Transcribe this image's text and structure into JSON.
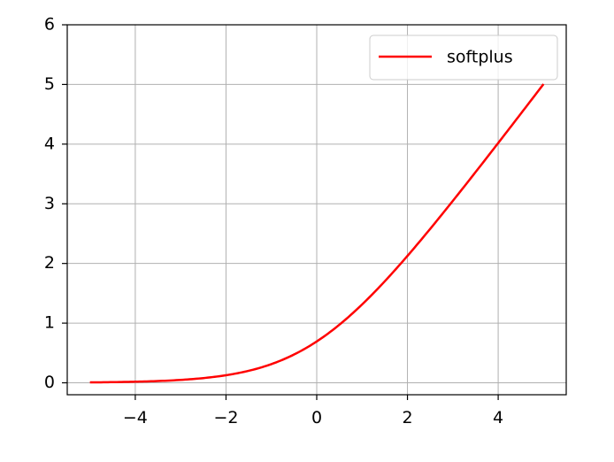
{
  "chart_data": {
    "type": "line",
    "title": "",
    "xlabel": "",
    "ylabel": "",
    "xlim": [
      -5.5,
      5.5
    ],
    "ylim": [
      -0.2,
      6.0
    ],
    "xticks": [
      -4,
      -2,
      0,
      2,
      4
    ],
    "xtick_labels": [
      "−4",
      "−2",
      "0",
      "2",
      "4"
    ],
    "yticks": [
      0,
      1,
      2,
      3,
      4,
      5,
      6
    ],
    "ytick_labels": [
      "0",
      "1",
      "2",
      "3",
      "4",
      "5",
      "6"
    ],
    "grid": true,
    "legend": {
      "position": "top-right",
      "entries": [
        "softplus"
      ]
    },
    "series": [
      {
        "name": "softplus",
        "color": "#ff0000",
        "x": [
          -5,
          -4.5,
          -4,
          -3.5,
          -3,
          -2.5,
          -2,
          -1.5,
          -1,
          -0.5,
          0,
          0.5,
          1,
          1.5,
          2,
          2.5,
          3,
          3.5,
          4,
          4.5,
          5
        ],
        "y": [
          0.0067,
          0.011,
          0.018,
          0.03,
          0.049,
          0.079,
          0.127,
          0.201,
          0.313,
          0.474,
          0.693,
          0.974,
          1.313,
          1.701,
          2.127,
          2.579,
          3.049,
          3.53,
          4.018,
          4.511,
          5.007
        ]
      }
    ]
  }
}
